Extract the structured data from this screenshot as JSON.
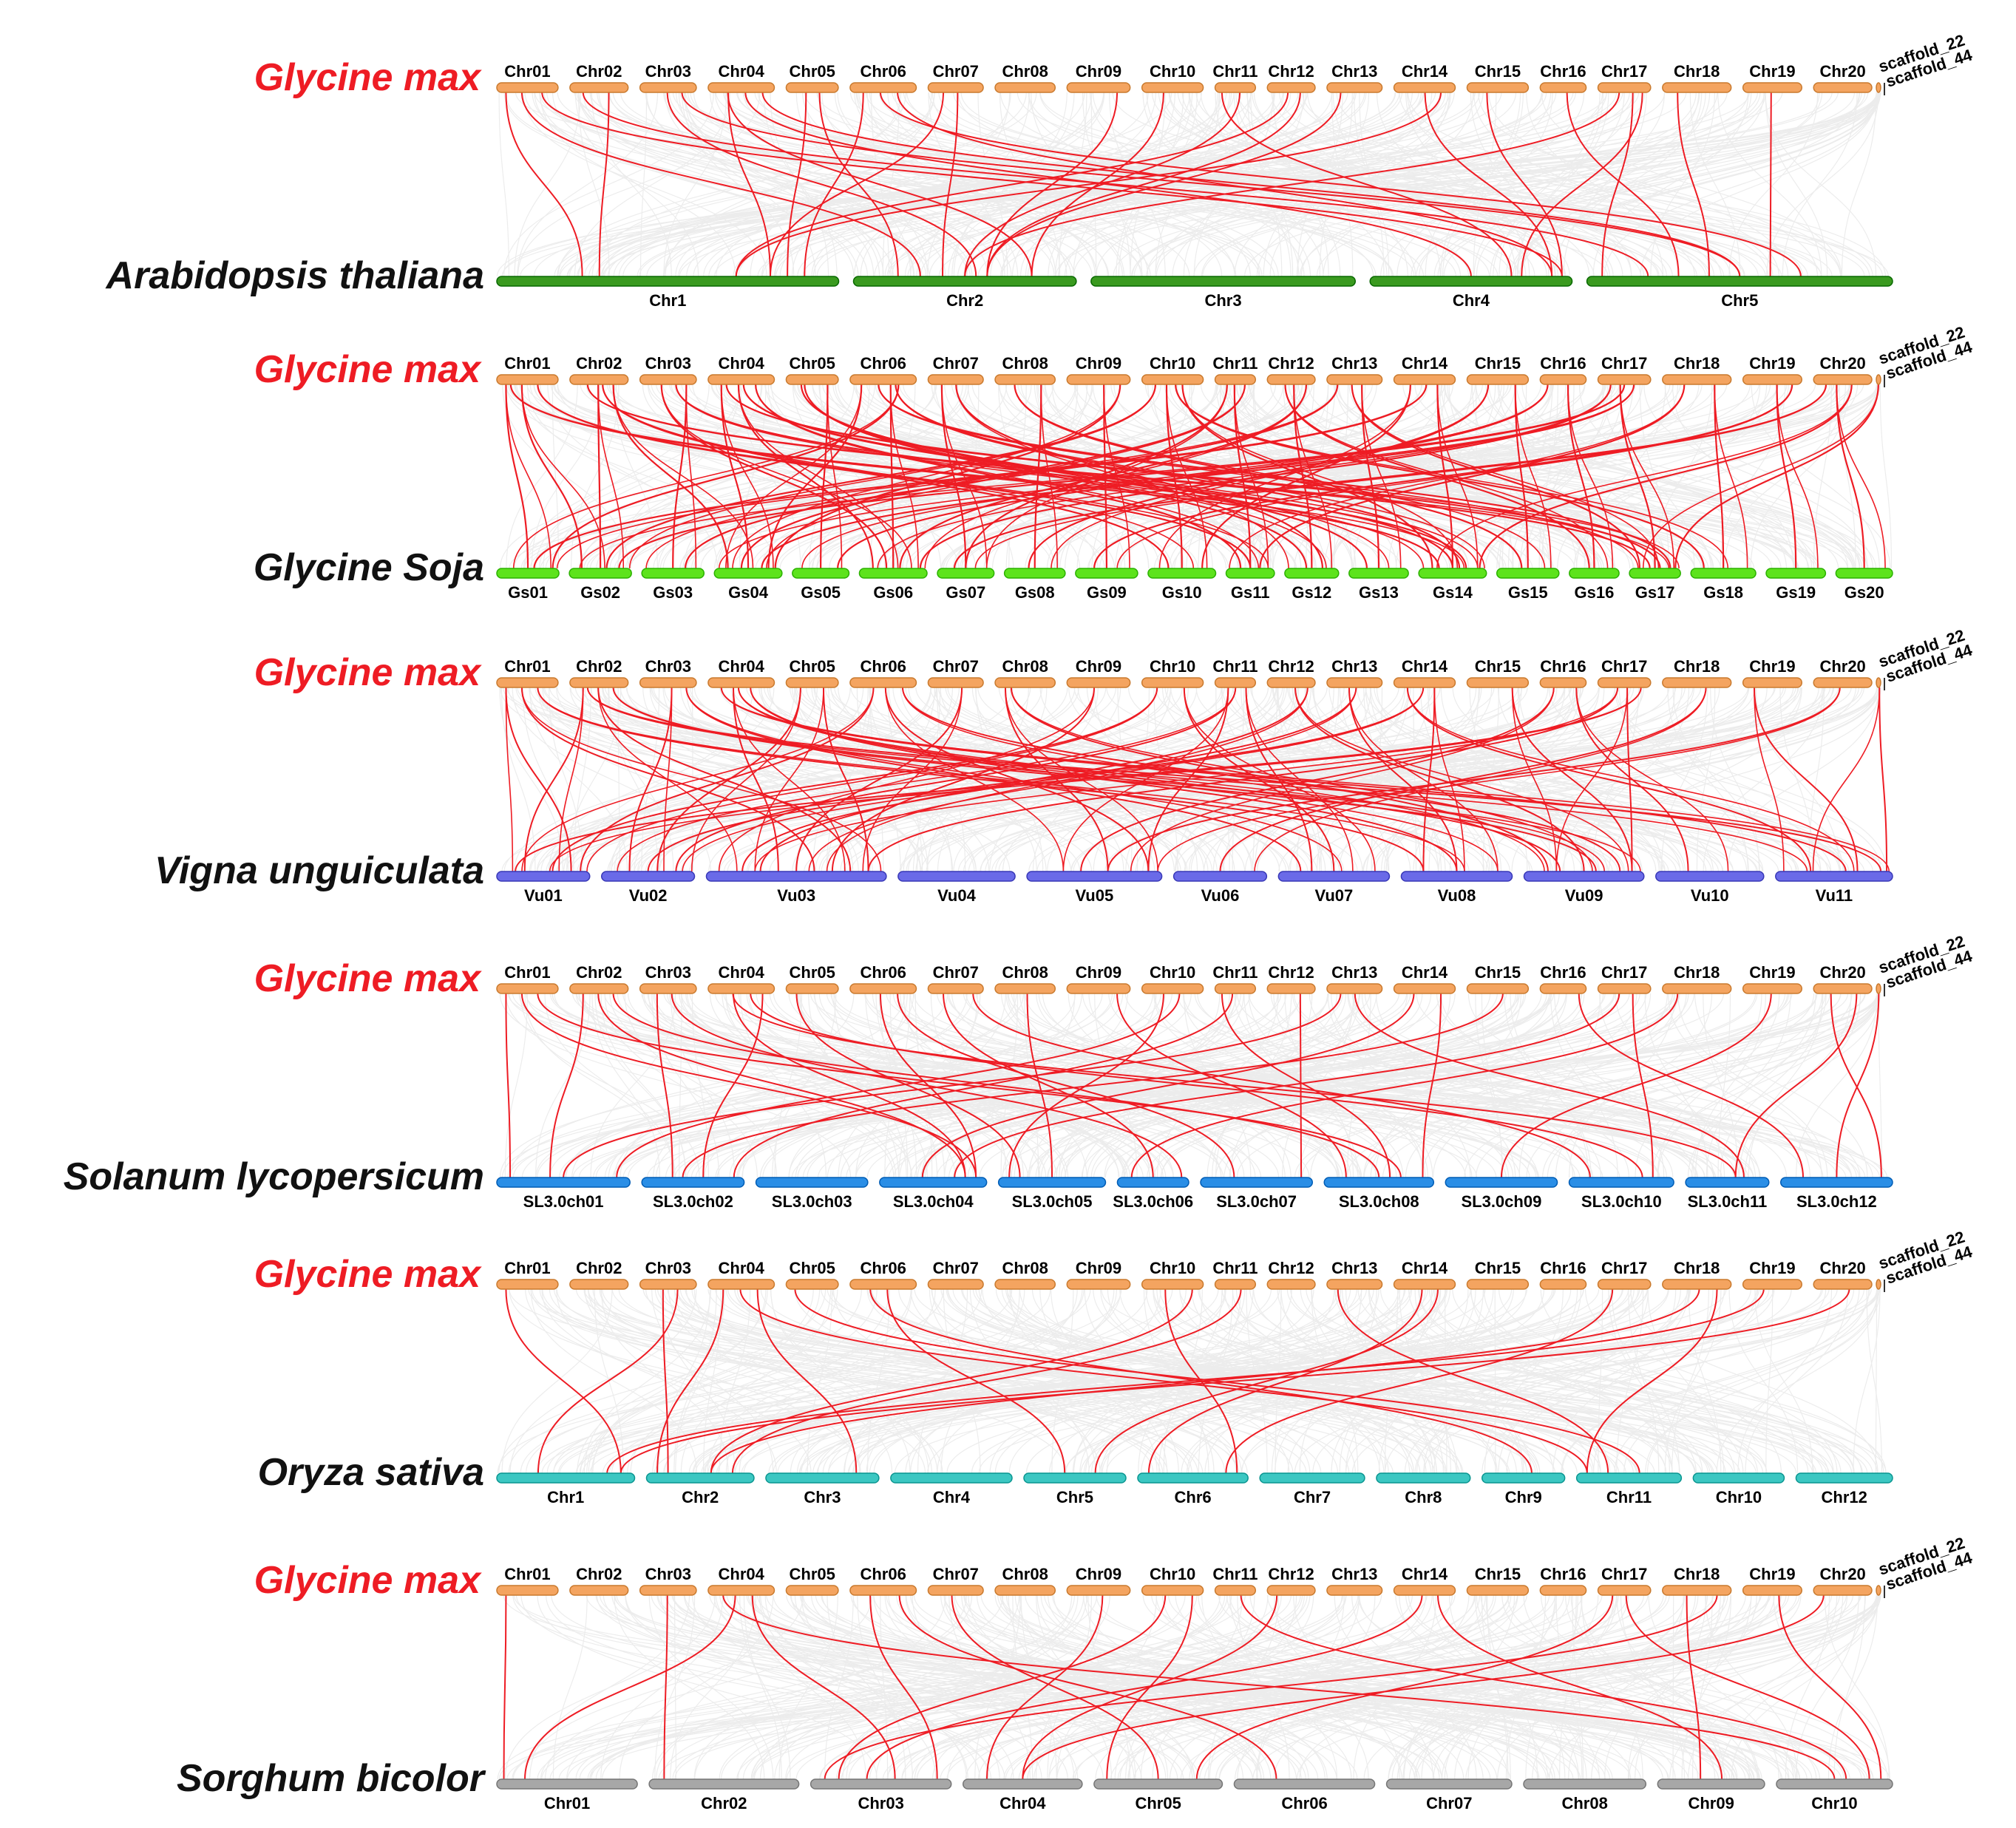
{
  "figure": {
    "reference_species": "Glycine max",
    "colors": {
      "reference_label": "#ee1c24",
      "target_label": "#111111",
      "reference_bar": "#f4a460",
      "reference_bar_stroke": "#c97a2e",
      "collinear_background": "#dedede",
      "syntenic_pair": "#ee1c24"
    },
    "reference_chromosomes": [
      "Chr01",
      "Chr02",
      "Chr03",
      "Chr04",
      "Chr05",
      "Chr06",
      "Chr07",
      "Chr08",
      "Chr09",
      "Chr10",
      "Chr11",
      "Chr12",
      "Chr13",
      "Chr14",
      "Chr15",
      "Chr16",
      "Chr17",
      "Chr18",
      "Chr19",
      "Chr20"
    ],
    "reference_scaffolds": [
      "scaffold_22",
      "scaffold_44"
    ],
    "panels": [
      {
        "species": "Arabidopsis thaliana",
        "color": "#3a9a1f",
        "chromosomes": [
          "Chr1",
          "Chr2",
          "Chr3",
          "Chr4",
          "Chr5"
        ],
        "pairs": [
          [
            0,
            0,
            0.25
          ],
          [
            0,
            1,
            0.3
          ],
          [
            1,
            0,
            0.3
          ],
          [
            1,
            4,
            0.2
          ],
          [
            2,
            1,
            0.55
          ],
          [
            2,
            4,
            0.5
          ],
          [
            3,
            0,
            0.8
          ],
          [
            3,
            3,
            0.5
          ],
          [
            3,
            4,
            0.5
          ],
          [
            4,
            0,
            0.85
          ],
          [
            4,
            1,
            0.2
          ],
          [
            5,
            0,
            0.9
          ],
          [
            5,
            4,
            0.7
          ],
          [
            5,
            3,
            0.9
          ],
          [
            6,
            0,
            0.8
          ],
          [
            6,
            1,
            0.4
          ],
          [
            8,
            1,
            0.6
          ],
          [
            9,
            1,
            0.8
          ],
          [
            10,
            1,
            0.5
          ],
          [
            10,
            3,
            0.7
          ],
          [
            11,
            0,
            0.7
          ],
          [
            11,
            1,
            0.6
          ],
          [
            12,
            1,
            0.6
          ],
          [
            13,
            3,
            0.9
          ],
          [
            13,
            0,
            0.7
          ],
          [
            14,
            3,
            0.95
          ],
          [
            15,
            4,
            0.3
          ],
          [
            16,
            3,
            0.75
          ],
          [
            16,
            1,
            0.5
          ],
          [
            16,
            4,
            0.05
          ],
          [
            17,
            4,
            0.4
          ],
          [
            18,
            4,
            0.6
          ],
          [
            0,
            3,
            0.95
          ],
          [
            3,
            1,
            0.8
          ]
        ]
      },
      {
        "species": "Glycine Soja",
        "color": "#5de31c",
        "chromosomes": [
          "Gs01",
          "Gs02",
          "Gs03",
          "Gs04",
          "Gs05",
          "Gs06",
          "Gs07",
          "Gs08",
          "Gs09",
          "Gs10",
          "Gs11",
          "Gs12",
          "Gs13",
          "Gs14",
          "Gs15",
          "Gs16",
          "Gs17",
          "Gs18",
          "Gs19",
          "Gs20"
        ],
        "pairs": [
          [
            0,
            0,
            0.5
          ],
          [
            0,
            1,
            0.2
          ],
          [
            0,
            10,
            0.5
          ],
          [
            0,
            13,
            0.3
          ],
          [
            1,
            1,
            0.5
          ],
          [
            1,
            3,
            0.2
          ],
          [
            1,
            16,
            0.4
          ],
          [
            1,
            9,
            0.3
          ],
          [
            2,
            2,
            0.5
          ],
          [
            2,
            5,
            0.4
          ],
          [
            2,
            13,
            0.7
          ],
          [
            3,
            3,
            0.5
          ],
          [
            3,
            5,
            0.2
          ],
          [
            3,
            10,
            0.3
          ],
          [
            3,
            16,
            0.6
          ],
          [
            3,
            13,
            0.5
          ],
          [
            4,
            4,
            0.5
          ],
          [
            4,
            11,
            0.4
          ],
          [
            5,
            5,
            0.5
          ],
          [
            5,
            3,
            0.8
          ],
          [
            5,
            16,
            0.8
          ],
          [
            5,
            13,
            0.6
          ],
          [
            6,
            6,
            0.5
          ],
          [
            6,
            11,
            0.7
          ],
          [
            7,
            7,
            0.5
          ],
          [
            7,
            14,
            0.4
          ],
          [
            8,
            8,
            0.5
          ],
          [
            8,
            3,
            0.9
          ],
          [
            9,
            9,
            0.5
          ],
          [
            9,
            13,
            0.2
          ],
          [
            9,
            1,
            0.6
          ],
          [
            10,
            10,
            0.5
          ],
          [
            10,
            3,
            0.4
          ],
          [
            10,
            6,
            0.5
          ],
          [
            11,
            11,
            0.5
          ],
          [
            11,
            5,
            0.6
          ],
          [
            11,
            15,
            0.4
          ],
          [
            12,
            12,
            0.5
          ],
          [
            12,
            2,
            0.7
          ],
          [
            12,
            16,
            0.2
          ],
          [
            13,
            13,
            0.5
          ],
          [
            13,
            9,
            0.8
          ],
          [
            13,
            0,
            0.6
          ],
          [
            14,
            14,
            0.5
          ],
          [
            14,
            7,
            0.4
          ],
          [
            15,
            15,
            0.5
          ],
          [
            15,
            4,
            0.8
          ],
          [
            16,
            16,
            0.5
          ],
          [
            16,
            3,
            0.7
          ],
          [
            16,
            5,
            0.9
          ],
          [
            16,
            1,
            0.8
          ],
          [
            17,
            17,
            0.5
          ],
          [
            17,
            10,
            0.7
          ],
          [
            18,
            18,
            0.5
          ],
          [
            18,
            8,
            0.3
          ],
          [
            19,
            19,
            0.5
          ],
          [
            19,
            13,
            0.9
          ],
          [
            19,
            6,
            0.3
          ],
          [
            20,
            16,
            0.9
          ],
          [
            5,
            0,
            0.9
          ],
          [
            4,
            12,
            0.3
          ],
          [
            9,
            17,
            0.2
          ]
        ]
      },
      {
        "species": "Vigna unguiculata",
        "color": "#6a6ae8",
        "chromosomes": [
          "Vu01",
          "Vu02",
          "Vu03",
          "Vu04",
          "Vu05",
          "Vu06",
          "Vu07",
          "Vu08",
          "Vu09",
          "Vu10",
          "Vu11"
        ],
        "pairs": [
          [
            0,
            0,
            0.8
          ],
          [
            0,
            2,
            0.6
          ],
          [
            0,
            7,
            0.2
          ],
          [
            1,
            0,
            0.3
          ],
          [
            1,
            2,
            0.8
          ],
          [
            1,
            8,
            0.6
          ],
          [
            1,
            10,
            0.9
          ],
          [
            2,
            1,
            0.3
          ],
          [
            2,
            6,
            0.2
          ],
          [
            3,
            2,
            0.4
          ],
          [
            3,
            7,
            0.5
          ],
          [
            3,
            10,
            0.6
          ],
          [
            3,
            8,
            0.3
          ],
          [
            4,
            2,
            0.9
          ],
          [
            4,
            1,
            0.6
          ],
          [
            5,
            4,
            0.9
          ],
          [
            5,
            8,
            0.8
          ],
          [
            5,
            0,
            0.9
          ],
          [
            6,
            2,
            0.5
          ],
          [
            7,
            4,
            0.6
          ],
          [
            8,
            2,
            0.7
          ],
          [
            9,
            6,
            0.5
          ],
          [
            9,
            0,
            0.6
          ],
          [
            10,
            1,
            0.8
          ],
          [
            10,
            6,
            0.3
          ],
          [
            10,
            4,
            0.9
          ],
          [
            11,
            8,
            0.5
          ],
          [
            11,
            2,
            0.3
          ],
          [
            12,
            7,
            0.5
          ],
          [
            13,
            7,
            0.2
          ],
          [
            13,
            10,
            0.3
          ],
          [
            13,
            1,
            0.5
          ],
          [
            14,
            8,
            0.9
          ],
          [
            15,
            4,
            0.4
          ],
          [
            16,
            8,
            0.9
          ],
          [
            16,
            0,
            0.2
          ],
          [
            16,
            2,
            0.9
          ],
          [
            17,
            5,
            0.5
          ],
          [
            18,
            10,
            0.7
          ],
          [
            19,
            4,
            0.6
          ],
          [
            20,
            10,
            0.95
          ],
          [
            7,
            8,
            0.2
          ],
          [
            12,
            2,
            0.2
          ],
          [
            15,
            9,
            0.3
          ]
        ]
      },
      {
        "species": "Solanum lycopersicum",
        "color": "#2a8ee6",
        "chromosomes": [
          "SL3.0ch01",
          "SL3.0ch02",
          "SL3.0ch03",
          "SL3.0ch04",
          "SL3.0ch05",
          "SL3.0ch06",
          "SL3.0ch07",
          "SL3.0ch08",
          "SL3.0ch09",
          "SL3.0ch10",
          "SL3.0ch11",
          "SL3.0ch12"
        ],
        "pairs": [
          [
            0,
            0,
            0.1
          ],
          [
            0,
            3,
            0.9
          ],
          [
            0,
            7,
            0.7
          ],
          [
            1,
            0,
            0.4
          ],
          [
            1,
            3,
            0.8
          ],
          [
            1,
            7,
            0.5
          ],
          [
            2,
            1,
            0.3
          ],
          [
            2,
            5,
            0.9
          ],
          [
            3,
            1,
            0.6
          ],
          [
            3,
            3,
            0.8
          ],
          [
            3,
            9,
            0.7
          ],
          [
            4,
            4,
            0.2
          ],
          [
            5,
            3,
            0.9
          ],
          [
            5,
            6,
            0.3
          ],
          [
            6,
            5,
            0.5
          ],
          [
            7,
            4,
            0.5
          ],
          [
            8,
            7,
            0.2
          ],
          [
            9,
            4,
            0.1
          ],
          [
            9,
            0,
            0.9
          ],
          [
            10,
            7,
            0.6
          ],
          [
            10,
            1,
            0.9
          ],
          [
            11,
            6,
            0.9
          ],
          [
            12,
            0,
            0.5
          ],
          [
            12,
            10,
            0.7
          ],
          [
            13,
            7,
            0.9
          ],
          [
            13,
            3,
            0.4
          ],
          [
            14,
            1,
            0.4
          ],
          [
            15,
            11,
            0.2
          ],
          [
            16,
            3,
            0.7
          ],
          [
            16,
            9,
            0.8
          ],
          [
            17,
            5,
            0.2
          ],
          [
            18,
            8,
            0.5
          ],
          [
            19,
            10,
            0.6
          ],
          [
            19,
            11,
            0.9
          ],
          [
            20,
            11,
            0.5
          ],
          [
            6,
            9,
            0.2
          ],
          [
            3,
            10,
            0.6
          ]
        ]
      },
      {
        "species": "Oryza sativa",
        "color": "#3cc7c2",
        "chromosomes": [
          "Chr1",
          "Chr2",
          "Chr3",
          "Chr4",
          "Chr5",
          "Chr6",
          "Chr7",
          "Chr8",
          "Chr9",
          "Chr11",
          "Chr10",
          "Chr12"
        ],
        "pairs": [
          [
            0,
            0,
            0.9
          ],
          [
            2,
            1,
            0.2
          ],
          [
            2,
            0,
            0.3
          ],
          [
            3,
            1,
            0.1
          ],
          [
            3,
            9,
            0.1
          ],
          [
            3,
            2,
            0.8
          ],
          [
            5,
            8,
            0.6
          ],
          [
            5,
            4,
            0.4
          ],
          [
            9,
            1,
            0.6
          ],
          [
            9,
            5,
            0.9
          ],
          [
            10,
            1,
            0.8
          ],
          [
            12,
            9,
            0.3
          ],
          [
            13,
            5,
            0.1
          ],
          [
            13,
            4,
            0.7
          ],
          [
            16,
            5,
            0.8
          ],
          [
            17,
            1,
            0.6
          ],
          [
            17,
            9,
            0.1
          ],
          [
            18,
            0,
            0.8
          ],
          [
            19,
            0,
            0.9
          ],
          [
            4,
            9,
            0.6
          ]
        ]
      },
      {
        "species": "Sorghum bicolor",
        "color": "#a7a7a7",
        "chromosomes": [
          "Chr01",
          "Chr02",
          "Chr03",
          "Chr04",
          "Chr05",
          "Chr06",
          "Chr07",
          "Chr08",
          "Chr09",
          "Chr10"
        ],
        "pairs": [
          [
            0,
            0,
            0.05
          ],
          [
            3,
            0,
            0.2
          ],
          [
            3,
            2,
            0.6
          ],
          [
            3,
            9,
            0.5
          ],
          [
            2,
            1,
            0.1
          ],
          [
            5,
            5,
            0.3
          ],
          [
            5,
            2,
            0.9
          ],
          [
            8,
            3,
            0.2
          ],
          [
            9,
            4,
            0.1
          ],
          [
            9,
            2,
            0.2
          ],
          [
            10,
            9,
            0.6
          ],
          [
            11,
            3,
            0.5
          ],
          [
            13,
            2,
            0.4
          ],
          [
            13,
            8,
            0.6
          ],
          [
            16,
            4,
            0.8
          ],
          [
            16,
            9,
            0.8
          ],
          [
            17,
            2,
            0.1
          ],
          [
            17,
            8,
            0.4
          ],
          [
            18,
            9,
            0.9
          ],
          [
            19,
            3,
            0.5
          ],
          [
            6,
            4,
            0.5
          ]
        ]
      }
    ]
  }
}
